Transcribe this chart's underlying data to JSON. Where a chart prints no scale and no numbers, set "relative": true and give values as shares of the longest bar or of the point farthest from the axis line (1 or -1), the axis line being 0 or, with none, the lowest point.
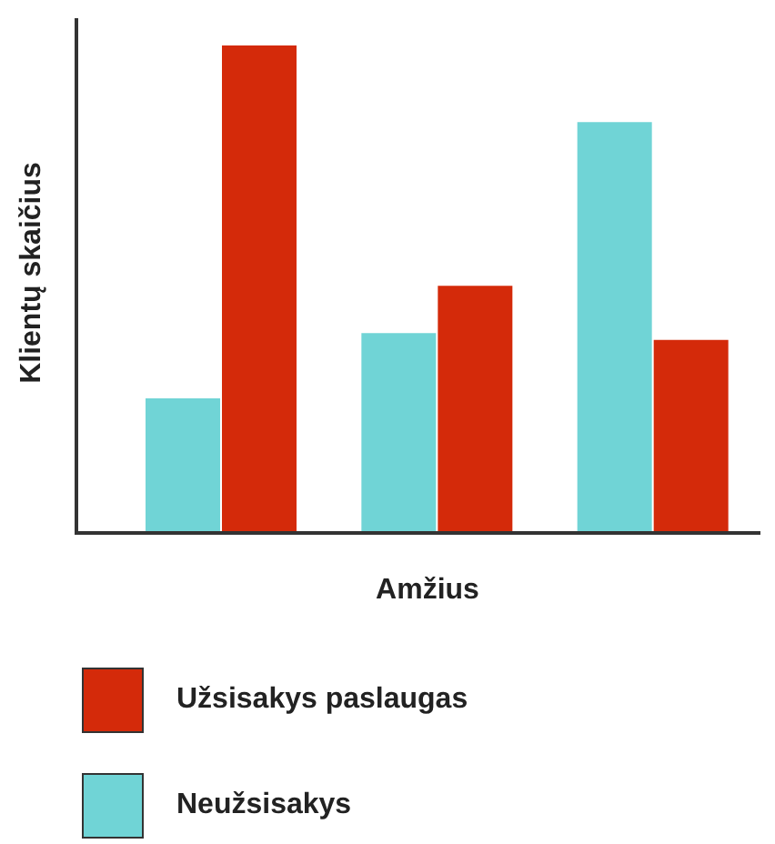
{
  "chart_data": {
    "type": "bar",
    "relative": true,
    "xlabel": "Amžius",
    "ylabel": "Klientų skaičius",
    "categories": [
      null,
      null,
      null
    ],
    "legend": "bottom",
    "series": [
      {
        "name": "Neužsisakys",
        "color": "#70d4d6",
        "values": [
          0.276,
          0.41,
          0.843
        ]
      },
      {
        "name": "Užsisakys paslaugas",
        "color": "#d42a0a",
        "values": [
          1,
          0.507,
          0.396
        ]
      }
    ]
  }
}
